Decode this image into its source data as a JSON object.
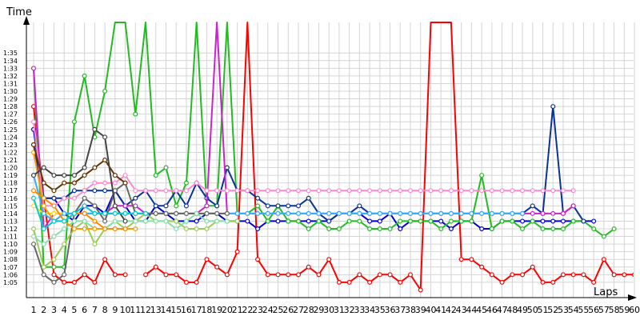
{
  "chart_data": {
    "type": "line",
    "ylabel": "Time",
    "xlabel": "Laps",
    "grid": true,
    "legend": "none",
    "x_ticks": [
      "1",
      "2",
      "3",
      "4",
      "5",
      "6",
      "7",
      "8",
      "9",
      "10",
      "11",
      "12",
      "13",
      "14",
      "15",
      "16",
      "17",
      "18",
      "19",
      "20",
      "21",
      "22",
      "23",
      "24",
      "25",
      "26",
      "27",
      "28",
      "29",
      "30",
      "31",
      "32",
      "33",
      "34",
      "35",
      "36",
      "37",
      "38",
      "39",
      "40",
      "41",
      "42",
      "43",
      "44",
      "45",
      "46",
      "47",
      "48",
      "49",
      "50",
      "51",
      "52",
      "53",
      "54",
      "55",
      "56",
      "57",
      "58",
      "59",
      "60"
    ],
    "y_ticks": [
      "1:05",
      "1:06",
      "1:07",
      "1:08",
      "1:09",
      "1:10",
      "1:11",
      "1:12",
      "1:13",
      "1:14",
      "1:15",
      "1:16",
      "1:17",
      "1:18",
      "1:19",
      "1:20",
      "1:21",
      "1:22",
      "1:23",
      "1:24",
      "1:25",
      "1:26",
      "1:27",
      "1:28",
      "1:29",
      "1:30",
      "1:31",
      "1:32",
      "1:33",
      "1:34",
      "1:35"
    ],
    "ylim_seconds": [
      63,
      99
    ],
    "xlim": [
      1,
      60
    ],
    "series": [
      {
        "color": "#ff0000",
        "values": [
          88,
          76,
          66,
          65,
          65,
          66,
          65,
          68,
          66,
          66,
          null,
          66,
          67,
          66,
          66,
          65,
          65,
          68,
          67,
          66,
          69,
          99,
          68,
          66,
          66,
          66,
          66,
          67,
          66,
          68,
          65,
          65,
          66,
          65,
          66,
          66,
          65,
          66,
          64,
          99,
          99,
          99,
          68,
          68,
          67,
          66,
          65,
          66,
          66,
          67,
          65,
          65,
          66,
          66,
          66,
          65,
          68,
          66,
          66,
          66
        ]
      },
      {
        "color": "#0000cc",
        "values": [
          85,
          76,
          76,
          74,
          73,
          75,
          75,
          74,
          77,
          75,
          73,
          73,
          75,
          74,
          73,
          73,
          73,
          74,
          74,
          73,
          73,
          73,
          72,
          73,
          73,
          73,
          73,
          73,
          73,
          73,
          74,
          74,
          74,
          73,
          73,
          74,
          72,
          73,
          73,
          73,
          73,
          72,
          73,
          73,
          72,
          72,
          73,
          73,
          73,
          73,
          73,
          73,
          73,
          73,
          73,
          73
        ]
      },
      {
        "color": "#22bb22",
        "values": [
          93,
          67,
          67,
          67,
          86,
          92,
          84,
          90,
          99,
          99,
          87,
          99,
          79,
          80,
          75,
          78,
          99,
          75,
          75,
          99,
          74,
          74,
          75,
          73,
          75,
          73,
          73,
          72,
          73,
          72,
          72,
          73,
          73,
          72,
          72,
          72,
          73,
          73,
          73,
          73,
          72,
          73,
          73,
          73,
          79,
          72,
          73,
          73,
          72,
          73,
          72,
          72,
          72,
          73,
          73,
          72,
          71,
          72
        ]
      },
      {
        "color": "#0a3399",
        "values": [
          83,
          76,
          76,
          76,
          77,
          77,
          77,
          77,
          77,
          75,
          76,
          77,
          75,
          75,
          77,
          75,
          78,
          76,
          75,
          80,
          77,
          77,
          76,
          75,
          75,
          75,
          75,
          76,
          74,
          73,
          74,
          74,
          75,
          74,
          74,
          74,
          74,
          74,
          74,
          74,
          74,
          74,
          74,
          74,
          74,
          74,
          74,
          74,
          74,
          75,
          74,
          88,
          74,
          75,
          73
        ]
      },
      {
        "color": "#cc22cc",
        "values": [
          93,
          72,
          74,
          74,
          74,
          74,
          74,
          74,
          75,
          75,
          75,
          74,
          74,
          74,
          74,
          74,
          74,
          75,
          99,
          74,
          74,
          74,
          74,
          74,
          74,
          74,
          74,
          74,
          74,
          74,
          74,
          74,
          74,
          74,
          74,
          74,
          74,
          74,
          74,
          74,
          74,
          74,
          74,
          74,
          74,
          74,
          74,
          74,
          74,
          74,
          74,
          74,
          74,
          75
        ]
      },
      {
        "color": "#ff88cc",
        "values": [
          86,
          75,
          75,
          76,
          76,
          77,
          78,
          78,
          78,
          79,
          77,
          77,
          77,
          77,
          77,
          77,
          78,
          77,
          77,
          77,
          77,
          77,
          77,
          77,
          77,
          77,
          77,
          77,
          77,
          77,
          77,
          77,
          77,
          77,
          77,
          77,
          77,
          77,
          77,
          77,
          77,
          77,
          77,
          77,
          77,
          77,
          77,
          77,
          77,
          77,
          77,
          77,
          77,
          77
        ]
      },
      {
        "color": "#ffdd00",
        "values": [
          75,
          74,
          74,
          74,
          74,
          74,
          74,
          74,
          74,
          74,
          74,
          74,
          74,
          74,
          74,
          74,
          74,
          74,
          74,
          74,
          74,
          74,
          74,
          74,
          74,
          74,
          74,
          74,
          74,
          74,
          74,
          74,
          74,
          74,
          74,
          74,
          74,
          74,
          74,
          74,
          74,
          74,
          74,
          74,
          74,
          74,
          74,
          74
        ]
      },
      {
        "color": "#33aaff",
        "values": [
          79,
          74,
          73,
          74,
          74,
          74,
          74,
          74,
          74,
          74,
          74,
          74,
          74,
          74,
          74,
          74,
          74,
          74,
          74,
          74,
          74,
          74,
          74,
          74,
          74,
          74,
          74,
          74,
          74,
          74,
          74,
          74,
          74,
          74,
          74,
          74,
          74,
          74,
          74,
          74,
          74,
          74,
          74,
          74,
          74,
          74,
          74,
          74,
          74
        ]
      },
      {
        "color": "#666666",
        "values": [
          70,
          66,
          65,
          66,
          74,
          76,
          75,
          73,
          77,
          78,
          74,
          74,
          74,
          74,
          74,
          74,
          74,
          74,
          74,
          74
        ]
      },
      {
        "color": "#99cc55",
        "values": [
          72,
          67,
          68,
          70,
          72,
          73,
          70,
          72,
          73,
          72,
          73,
          74,
          73,
          73,
          73,
          72,
          72,
          72,
          73,
          73,
          73
        ]
      },
      {
        "color": "#88ddaa",
        "values": [
          71,
          70,
          71,
          72,
          73,
          73,
          72,
          72,
          73,
          73,
          73,
          73,
          73,
          73,
          72,
          73,
          74,
          73,
          73,
          73
        ]
      },
      {
        "color": "#ff9900",
        "values": [
          82,
          75,
          73,
          73,
          72,
          72,
          72,
          72,
          72,
          72,
          72
        ]
      },
      {
        "color": "#ff8800",
        "values": [
          77,
          76,
          75,
          73,
          74,
          74,
          73,
          72,
          72,
          72
        ]
      },
      {
        "color": "#663300",
        "values": [
          83,
          78,
          77,
          78,
          78,
          79,
          80,
          81,
          79,
          78
        ]
      },
      {
        "color": "#444444",
        "values": [
          79,
          80,
          79,
          79,
          79,
          80,
          85,
          84,
          75,
          73
        ]
      },
      {
        "color": "#00cccc",
        "values": [
          76,
          72,
          73,
          73,
          74,
          75,
          74,
          74,
          74,
          74,
          74,
          74
        ]
      }
    ]
  }
}
